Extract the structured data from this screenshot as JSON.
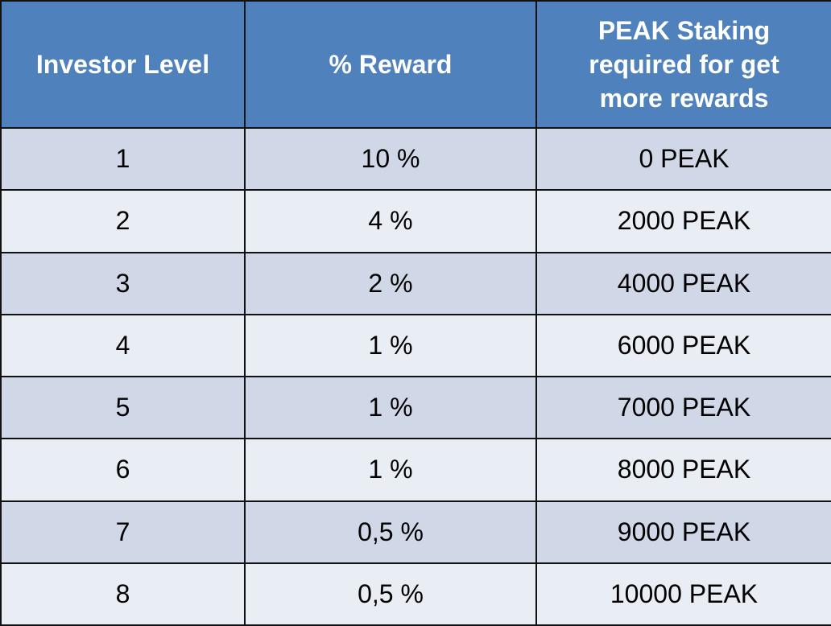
{
  "table": {
    "headers": [
      "Investor Level",
      "% Reward",
      "PEAK Staking required for get more rewards"
    ],
    "rows": [
      {
        "level": "1",
        "reward": "10 %",
        "staking": "0 PEAK"
      },
      {
        "level": "2",
        "reward": "4 %",
        "staking": "2000 PEAK"
      },
      {
        "level": "3",
        "reward": "2 %",
        "staking": "4000 PEAK"
      },
      {
        "level": "4",
        "reward": "1 %",
        "staking": "6000 PEAK"
      },
      {
        "level": "5",
        "reward": "1 %",
        "staking": "7000 PEAK"
      },
      {
        "level": "6",
        "reward": "1 %",
        "staking": "8000 PEAK"
      },
      {
        "level": "7",
        "reward": "0,5 %",
        "staking": "9000 PEAK"
      },
      {
        "level": "8",
        "reward": "0,5 %",
        "staking": "10000 PEAK"
      }
    ],
    "colors": {
      "header_bg": "#4f81bd",
      "header_text": "#ffffff",
      "row_odd_bg": "#d0d8e8",
      "row_even_bg": "#e9edf4",
      "border": "#111111"
    }
  }
}
